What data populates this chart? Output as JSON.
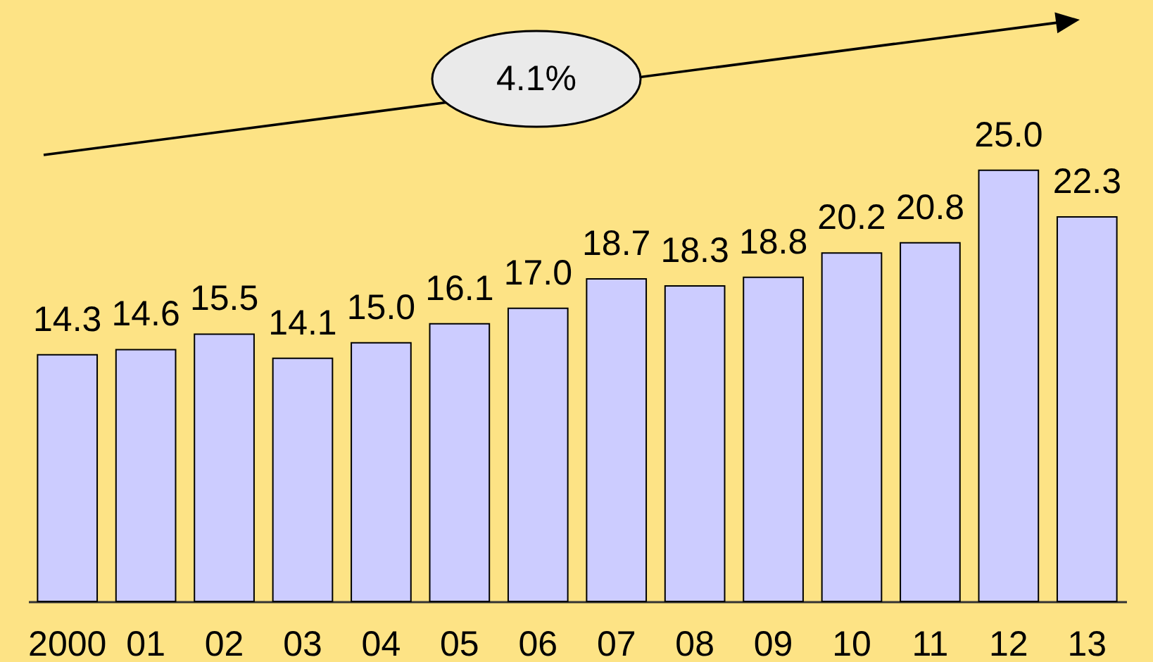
{
  "chart_data": {
    "type": "bar",
    "categories": [
      "2000",
      "01",
      "02",
      "03",
      "04",
      "05",
      "06",
      "07",
      "08",
      "09",
      "10",
      "11",
      "12",
      "13"
    ],
    "values": [
      14.3,
      14.6,
      15.5,
      14.1,
      15.0,
      16.1,
      17.0,
      18.7,
      18.3,
      18.8,
      20.2,
      20.8,
      25.0,
      22.3
    ],
    "value_labels": [
      "14.3",
      "14.6",
      "15.5",
      "14.1",
      "15.0",
      "16.1",
      "17.0",
      "18.7",
      "18.3",
      "18.8",
      "20.2",
      "20.8",
      "25.0",
      "22.3"
    ],
    "color": "#ccccff",
    "tick_labels": "x",
    "annotations": [
      "4.1%"
    ]
  }
}
